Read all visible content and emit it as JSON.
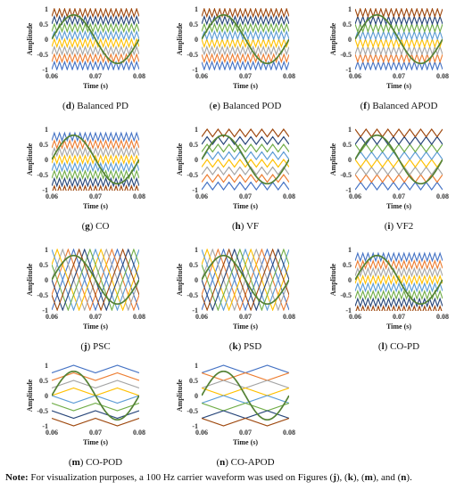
{
  "colors": [
    "#4472c4",
    "#ed7d31",
    "#a5a5a5",
    "#ffc000",
    "#5b9bd5",
    "#70ad47",
    "#264478",
    "#9e480e"
  ],
  "sine_color": "#548235",
  "chart_data": [
    {
      "id": "d",
      "tag": "d",
      "caption": "Balanced PD",
      "type": "line",
      "kind": "PD",
      "xlabel": "Time (s)",
      "ylabel": "Amplitude",
      "xlim": [
        0.06,
        0.08
      ],
      "ylim": [
        -1,
        1
      ],
      "xticks": [
        "0.06",
        "0.07",
        "0.08"
      ],
      "yticks": [
        "1",
        "0.5",
        "0",
        "-0.5",
        "-1"
      ],
      "carrier_periods": 17,
      "sine": {
        "frequency_hz": 50,
        "amplitude": 0.8
      }
    },
    {
      "id": "e",
      "tag": "e",
      "caption": "Balanced POD",
      "type": "line",
      "kind": "POD",
      "xlabel": "Time (s)",
      "ylabel": "Amplitude",
      "xlim": [
        0.06,
        0.08
      ],
      "ylim": [
        -1,
        1
      ],
      "xticks": [
        "0.06",
        "0.07",
        "0.08"
      ],
      "yticks": [
        "1",
        "0.5",
        "0",
        "-0.5",
        "-1"
      ],
      "carrier_periods": 17,
      "sine": {
        "frequency_hz": 50,
        "amplitude": 0.8
      }
    },
    {
      "id": "f",
      "tag": "f",
      "caption": "Balanced APOD",
      "type": "line",
      "kind": "APOD",
      "xlabel": "Time (s)",
      "ylabel": "Amplitude",
      "xlim": [
        0.06,
        0.08
      ],
      "ylim": [
        -1,
        1
      ],
      "xticks": [
        "0.06",
        "0.07",
        "0.08"
      ],
      "yticks": [
        "1",
        "0.5",
        "0",
        "-0.5",
        "-1"
      ],
      "carrier_periods": 17,
      "sine": {
        "frequency_hz": 50,
        "amplitude": 0.8
      }
    },
    {
      "id": "g",
      "tag": "g",
      "caption": "CO",
      "type": "line",
      "kind": "CO",
      "xlabel": "Time (s)",
      "ylabel": "Amplitude",
      "xlim": [
        0.06,
        0.08
      ],
      "ylim": [
        -1,
        1
      ],
      "xticks": [
        "0.06",
        "0.07",
        "0.08"
      ],
      "yticks": [
        "1",
        "0.5",
        "0",
        "-0.5",
        "-1"
      ],
      "carrier_periods": 17,
      "sine": {
        "frequency_hz": 50,
        "amplitude": 0.8
      }
    },
    {
      "id": "h",
      "tag": "h",
      "caption": "VF",
      "type": "line",
      "kind": "VF",
      "xlabel": "Time (s)",
      "ylabel": "Amplitude",
      "xlim": [
        0.06,
        0.08
      ],
      "ylim": [
        -1,
        1
      ],
      "xticks": [
        "0.06",
        "0.07",
        "0.08"
      ],
      "yticks": [
        "1",
        "0.5",
        "0",
        "-0.5",
        "-1"
      ],
      "carrier_periods": 8,
      "sine": {
        "frequency_hz": 50,
        "amplitude": 0.8
      }
    },
    {
      "id": "i",
      "tag": "i",
      "caption": "VF2",
      "type": "line",
      "kind": "VF2",
      "xlabel": "Time (s)",
      "ylabel": "Amplitude",
      "xlim": [
        0.06,
        0.08
      ],
      "ylim": [
        -1,
        1
      ],
      "xticks": [
        "0.06",
        "0.07",
        "0.08"
      ],
      "yticks": [
        "1",
        "0.5",
        "0",
        "-0.5",
        "-1"
      ],
      "carrier_periods": 8,
      "sine": {
        "frequency_hz": 50,
        "amplitude": 0.8
      }
    },
    {
      "id": "j",
      "tag": "j",
      "caption": "PSC",
      "type": "line",
      "kind": "PSC",
      "xlabel": "Time (s)",
      "ylabel": "Amplitude",
      "xlim": [
        0.06,
        0.08
      ],
      "ylim": [
        -1,
        1
      ],
      "xticks": [
        "0.06",
        "0.07",
        "0.08"
      ],
      "yticks": [
        "1",
        "0.5",
        "0",
        "-0.5",
        "-1"
      ],
      "carrier_frequency_hz": 100,
      "sine": {
        "frequency_hz": 50,
        "amplitude": 0.8
      }
    },
    {
      "id": "k",
      "tag": "k",
      "caption": "PSD",
      "type": "line",
      "kind": "PSD",
      "xlabel": "Time (s)",
      "ylabel": "Amplitude",
      "xlim": [
        0.06,
        0.08
      ],
      "ylim": [
        -1,
        1
      ],
      "xticks": [
        "0.06",
        "0.07",
        "0.08"
      ],
      "yticks": [
        "1",
        "0.5",
        "0",
        "-0.5",
        "-1"
      ],
      "carrier_frequency_hz": 100,
      "sine": {
        "frequency_hz": 50,
        "amplitude": 0.8
      }
    },
    {
      "id": "l",
      "tag": "l",
      "caption": "CO-PD",
      "type": "line",
      "kind": "COPD",
      "xlabel": "Time (s)",
      "ylabel": "Amplitude",
      "xlim": [
        0.06,
        0.08
      ],
      "ylim": [
        -1,
        1
      ],
      "xticks": [
        "0.06",
        "0.07",
        "0.08"
      ],
      "yticks": [
        "1",
        "0.5",
        "0",
        "-0.5",
        "-1"
      ],
      "carrier_periods": 17,
      "sine": {
        "frequency_hz": 50,
        "amplitude": 0.8
      }
    },
    {
      "id": "m",
      "tag": "m",
      "caption": "CO-POD",
      "type": "line",
      "kind": "COPOD",
      "xlabel": "Time (s)",
      "ylabel": "Amplitude",
      "xlim": [
        0.06,
        0.08
      ],
      "ylim": [
        -1,
        1
      ],
      "xticks": [
        "0.06",
        "0.07",
        "0.08"
      ],
      "yticks": [
        "1",
        "0.5",
        "0",
        "-0.5",
        "-1"
      ],
      "carrier_frequency_hz": 100,
      "sine": {
        "frequency_hz": 50,
        "amplitude": 0.8
      }
    },
    {
      "id": "n",
      "tag": "n",
      "caption": "CO-APOD",
      "type": "line",
      "kind": "COAPOD",
      "xlabel": "Time (s)",
      "ylabel": "Amplitude",
      "xlim": [
        0.06,
        0.08
      ],
      "ylim": [
        -1,
        1
      ],
      "xticks": [
        "0.06",
        "0.07",
        "0.08"
      ],
      "yticks": [
        "1",
        "0.5",
        "0",
        "-0.5",
        "-1"
      ],
      "carrier_frequency_hz": 100,
      "sine": {
        "frequency_hz": 50,
        "amplitude": 0.8
      }
    }
  ],
  "footnote": {
    "label": "Note:",
    "text_1": " For visualization purposes, a 100 Hz carrier waveform was used on Figures (",
    "ref_j": "j",
    "sep_1": "), (",
    "ref_k": "k",
    "sep_2": "), (",
    "ref_m": "m",
    "sep_3": "), and (",
    "ref_n": "n",
    "end": ")."
  }
}
